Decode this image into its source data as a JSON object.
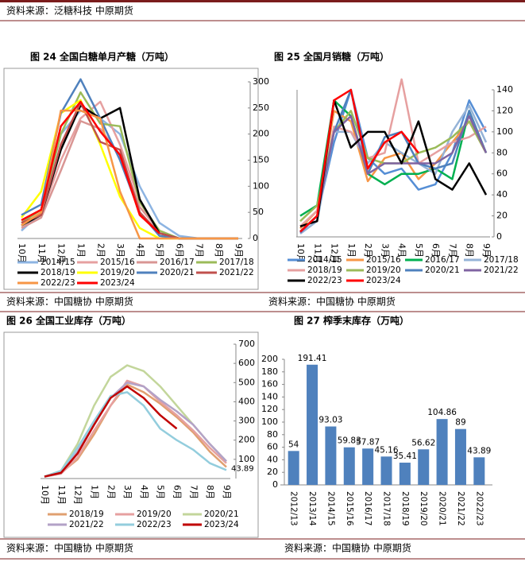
{
  "page": {
    "top_source": "资料来源：泛糖科技 中原期货",
    "sources": [
      "资料来源：中国糖协 中原期货",
      "资料来源：中国糖协 中原期货",
      "资料来源：中国糖协 中原期货",
      "资料来源：中国糖协 中原期货"
    ]
  },
  "chart_data": [
    {
      "type": "line",
      "title": "图 24 全国白糖单月产糖（万吨）",
      "categories": [
        "10月",
        "11月",
        "12月",
        "1月",
        "2月",
        "3月",
        "4月",
        "5月",
        "6月",
        "7月",
        "8月",
        "9月"
      ],
      "ylim": [
        0,
        300
      ],
      "yticks": [
        0,
        50,
        100,
        150,
        200,
        250,
        300
      ],
      "series": [
        {
          "name": "2014/15",
          "color": "#8db4e2",
          "values": [
            15,
            50,
            200,
            245,
            230,
            200,
            100,
            30,
            5,
            0,
            0,
            0
          ]
        },
        {
          "name": "2015/16",
          "color": "#e6a0a0",
          "values": [
            25,
            45,
            150,
            230,
            262,
            180,
            70,
            10,
            0,
            0,
            0,
            0
          ]
        },
        {
          "name": "2016/17",
          "color": "#d99694",
          "values": [
            20,
            40,
            130,
            225,
            210,
            160,
            60,
            15,
            0,
            0,
            0,
            0
          ]
        },
        {
          "name": "2017/18",
          "color": "#9bbb59",
          "values": [
            30,
            55,
            200,
            280,
            220,
            215,
            70,
            15,
            0,
            0,
            0,
            0
          ]
        },
        {
          "name": "2018/19",
          "color": "#000000",
          "values": [
            25,
            45,
            170,
            255,
            230,
            250,
            75,
            10,
            0,
            0,
            0,
            0
          ]
        },
        {
          "name": "2019/20",
          "color": "#ffff00",
          "values": [
            40,
            90,
            240,
            265,
            180,
            80,
            20,
            0,
            0,
            0,
            0,
            0
          ]
        },
        {
          "name": "2020/21",
          "color": "#4f81bd",
          "values": [
            45,
            65,
            240,
            305,
            230,
            150,
            50,
            5,
            0,
            0,
            0,
            0
          ]
        },
        {
          "name": "2021/22",
          "color": "#c0504d",
          "values": [
            30,
            45,
            180,
            260,
            185,
            170,
            50,
            10,
            0,
            0,
            0,
            0
          ]
        },
        {
          "name": "2022/23",
          "color": "#f79646",
          "values": [
            25,
            50,
            245,
            245,
            230,
            90,
            0,
            0,
            0,
            0,
            0,
            0
          ]
        },
        {
          "name": "2023/24",
          "color": "#ff0000",
          "values": [
            35,
            55,
            215,
            262,
            205,
            160,
            45,
            10,
            null,
            null,
            null,
            null
          ]
        }
      ]
    },
    {
      "type": "line",
      "title": "图 25 全国月销糖（万吨）",
      "categories": [
        "10月",
        "11月",
        "12月",
        "1月",
        "2月",
        "3月",
        "4月",
        "5月",
        "6月",
        "7月",
        "8月",
        "9月"
      ],
      "ylim": [
        0,
        140
      ],
      "yticks": [
        0,
        20,
        40,
        60,
        80,
        100,
        120,
        140
      ],
      "series": [
        {
          "name": "2014/15",
          "color": "#558ed5",
          "values": [
            5,
            20,
            90,
            140,
            75,
            60,
            65,
            45,
            50,
            80,
            130,
            100
          ]
        },
        {
          "name": "2015/16",
          "color": "#f79646",
          "values": [
            8,
            25,
            120,
            110,
            53,
            75,
            80,
            55,
            70,
            90,
            110,
            80
          ]
        },
        {
          "name": "2016/17",
          "color": "#00b050",
          "values": [
            20,
            30,
            130,
            115,
            60,
            50,
            60,
            60,
            65,
            55,
            120,
            80
          ]
        },
        {
          "name": "2017/18",
          "color": "#95b3d7",
          "values": [
            3,
            15,
            100,
            100,
            70,
            90,
            80,
            70,
            60,
            100,
            125,
            90
          ]
        },
        {
          "name": "2018/19",
          "color": "#e6a0a0",
          "values": [
            10,
            25,
            105,
            100,
            75,
            80,
            150,
            70,
            80,
            90,
            95,
            105
          ]
        },
        {
          "name": "2019/20",
          "color": "#9bbb59",
          "values": [
            15,
            30,
            100,
            120,
            75,
            70,
            70,
            80,
            85,
            95,
            110,
            80
          ]
        },
        {
          "name": "2020/21",
          "color": "#4f81bd",
          "values": [
            5,
            20,
            100,
            140,
            60,
            95,
            100,
            70,
            65,
            70,
            120,
            80
          ]
        },
        {
          "name": "2021/22",
          "color": "#8064a2",
          "values": [
            4,
            20,
            100,
            115,
            60,
            70,
            70,
            70,
            70,
            80,
            115,
            80
          ]
        },
        {
          "name": "2022/23",
          "color": "#000000",
          "values": [
            10,
            15,
            130,
            85,
            100,
            100,
            70,
            110,
            55,
            45,
            70,
            40
          ]
        },
        {
          "name": "2023/24",
          "color": "#ff0000",
          "values": [
            5,
            20,
            130,
            140,
            65,
            90,
            100,
            80,
            null,
            null,
            null,
            null
          ]
        }
      ]
    },
    {
      "type": "line",
      "title": "图 26 全国工业库存（万吨）",
      "categories": [
        "10月",
        "11月",
        "12月",
        "1月",
        "2月",
        "3月",
        "4月",
        "5月",
        "6月",
        "7月",
        "8月",
        "9月"
      ],
      "ylim": [
        0,
        700
      ],
      "yticks": [
        100,
        200,
        300,
        400,
        500,
        600,
        700
      ],
      "series": [
        {
          "name": "2018/19",
          "color": "#e0a070",
          "values": [
            10,
            30,
            100,
            230,
            380,
            490,
            450,
            390,
            320,
            240,
            140,
            60
          ]
        },
        {
          "name": "2019/20",
          "color": "#e6a0a0",
          "values": [
            10,
            25,
            110,
            250,
            380,
            510,
            480,
            400,
            330,
            250,
            160,
            80
          ]
        },
        {
          "name": "2020/21",
          "color": "#c3d69b",
          "values": [
            10,
            40,
            180,
            380,
            530,
            590,
            560,
            480,
            380,
            280,
            180,
            90
          ]
        },
        {
          "name": "2021/22",
          "color": "#b3a2c7",
          "values": [
            10,
            30,
            140,
            280,
            420,
            500,
            480,
            410,
            350,
            280,
            180,
            90
          ]
        },
        {
          "name": "2022/23",
          "color": "#93cddd",
          "values": [
            10,
            40,
            160,
            300,
            430,
            450,
            380,
            260,
            200,
            150,
            80,
            43.89
          ]
        },
        {
          "name": "2023/24",
          "color": "#c00000",
          "values": [
            10,
            30,
            130,
            280,
            420,
            480,
            420,
            330,
            260,
            null,
            null,
            null
          ]
        }
      ]
    },
    {
      "type": "bar",
      "title": "图 27 榨季末库存（万吨）",
      "color": "#4f81bd",
      "categories": [
        "2012/13",
        "2013/14",
        "2014/15",
        "2015/16",
        "2016/17",
        "2017/18",
        "2018/19",
        "2019/20",
        "2020/21",
        "2021/22",
        "2022/23"
      ],
      "values": [
        54,
        191.41,
        93.03,
        59.83,
        57.87,
        45.16,
        35.41,
        56.62,
        104.86,
        89,
        43.89
      ],
      "ylim": [
        0,
        200
      ],
      "yticks": [
        0,
        20,
        40,
        60,
        80,
        100,
        120,
        140,
        160,
        180,
        200
      ]
    }
  ]
}
